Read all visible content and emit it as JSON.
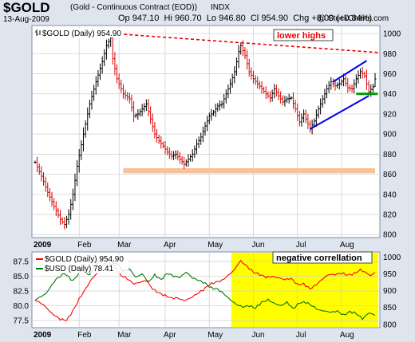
{
  "header": {
    "symbol": "$GOLD",
    "description": "(Gold - Continuous Contract (EOD))",
    "exchange": "INDX",
    "date": "13-Aug-2009",
    "open_label": "Op",
    "open": "947.10",
    "high_label": "Hi",
    "high": "960.70",
    "low_label": "Lo",
    "low": "946.80",
    "close_label": "Cl",
    "close": "954.90",
    "change_label": "Chg",
    "change": "+8.00 (+0.84%)",
    "credit": "@ StockCharts.com"
  },
  "colors": {
    "panel_bg": "#dfe5ee",
    "plot_bg": "#ffffff",
    "grid": "#cccccc",
    "up": "#000000",
    "down": "#dd0000",
    "resistance": "#ee0000",
    "support_zone": "#f7c19a",
    "channel": "#0000ee",
    "support_tick": "#009900",
    "highlight": "#ffff00",
    "gold_line": "#ff0000",
    "usd_line": "#007700"
  },
  "chart_data": [
    {
      "type": "ohlc",
      "title": "$GOLD (Daily) 954.90",
      "legend": "$GOLD (Daily) 954.90",
      "x_labels": [
        "2009",
        "Feb",
        "Mar",
        "Apr",
        "May",
        "Jun",
        "Jul",
        "Aug"
      ],
      "y_ticks": [
        800,
        820,
        840,
        860,
        880,
        900,
        920,
        940,
        960,
        980,
        1000
      ],
      "ylim": [
        797,
        1008
      ],
      "n_days": 163,
      "close_anchors": [
        [
          0,
          872
        ],
        [
          3,
          858
        ],
        [
          6,
          842
        ],
        [
          9,
          828
        ],
        [
          12,
          815
        ],
        [
          14,
          810
        ],
        [
          16,
          820
        ],
        [
          18,
          840
        ],
        [
          20,
          868
        ],
        [
          23,
          900
        ],
        [
          26,
          930
        ],
        [
          29,
          952
        ],
        [
          32,
          972
        ],
        [
          34,
          988
        ],
        [
          36,
          996
        ],
        [
          37,
          975
        ],
        [
          39,
          955
        ],
        [
          42,
          940
        ],
        [
          45,
          935
        ],
        [
          47,
          918
        ],
        [
          49,
          920
        ],
        [
          51,
          925
        ],
        [
          53,
          930
        ],
        [
          55,
          915
        ],
        [
          57,
          900
        ],
        [
          59,
          893
        ],
        [
          61,
          888
        ],
        [
          63,
          882
        ],
        [
          65,
          878
        ],
        [
          67,
          880
        ],
        [
          69,
          875
        ],
        [
          71,
          870
        ],
        [
          73,
          875
        ],
        [
          75,
          880
        ],
        [
          77,
          890
        ],
        [
          79,
          897
        ],
        [
          81,
          908
        ],
        [
          83,
          918
        ],
        [
          85,
          922
        ],
        [
          87,
          928
        ],
        [
          89,
          930
        ],
        [
          91,
          940
        ],
        [
          93,
          950
        ],
        [
          95,
          962
        ],
        [
          97,
          982
        ],
        [
          98,
          988
        ],
        [
          100,
          978
        ],
        [
          102,
          962
        ],
        [
          104,
          955
        ],
        [
          106,
          950
        ],
        [
          108,
          945
        ],
        [
          110,
          940
        ],
        [
          112,
          936
        ],
        [
          114,
          945
        ],
        [
          116,
          938
        ],
        [
          118,
          932
        ],
        [
          120,
          935
        ],
        [
          122,
          936
        ],
        [
          124,
          925
        ],
        [
          126,
          912
        ],
        [
          128,
          920
        ],
        [
          130,
          910
        ],
        [
          131,
          905
        ],
        [
          133,
          913
        ],
        [
          135,
          925
        ],
        [
          137,
          935
        ],
        [
          139,
          945
        ],
        [
          141,
          952
        ],
        [
          143,
          948
        ],
        [
          145,
          950
        ],
        [
          147,
          955
        ],
        [
          149,
          946
        ],
        [
          151,
          945
        ],
        [
          153,
          955
        ],
        [
          155,
          962
        ],
        [
          157,
          958
        ],
        [
          159,
          942
        ],
        [
          161,
          947
        ],
        [
          162,
          954.9
        ]
      ],
      "last_bar": {
        "open": 947.1,
        "high": 960.7,
        "low": 946.8,
        "close": 954.9
      },
      "annotations": {
        "resistance_line": {
          "label": "lower highs",
          "from": [
            37,
            1000
          ],
          "to": [
            162,
            981
          ]
        },
        "support_zone": {
          "from_day": 42,
          "to_day": 162,
          "y_low": 861,
          "y_high": 866
        },
        "channel_upper": {
          "from": [
            142,
            952
          ],
          "to": [
            158,
            973
          ]
        },
        "channel_lower": {
          "from": [
            131,
            905
          ],
          "to": [
            159,
            938
          ]
        },
        "support_tick": {
          "from_day": 153,
          "to_day": 161,
          "y": 940
        }
      }
    },
    {
      "type": "line",
      "label": "negative correllation",
      "x_labels": [
        "2009",
        "Feb",
        "Mar",
        "Apr",
        "May",
        "Jun",
        "Jul",
        "Aug"
      ],
      "highlight": {
        "from_day": 95,
        "to_day": 162
      },
      "series": [
        {
          "name": "$GOLD (Daily) 954.90",
          "axis": "right",
          "right_ticks": [
            800,
            850,
            900,
            950,
            1000
          ],
          "ylim": [
            790,
            1015
          ],
          "anchors": [
            [
              0,
              872
            ],
            [
              4,
              858
            ],
            [
              8,
              832
            ],
            [
              12,
              815
            ],
            [
              15,
              812
            ],
            [
              18,
              840
            ],
            [
              21,
              875
            ],
            [
              24,
              905
            ],
            [
              27,
              935
            ],
            [
              30,
              955
            ],
            [
              33,
              980
            ],
            [
              36,
              996
            ],
            [
              38,
              970
            ],
            [
              41,
              945
            ],
            [
              44,
              935
            ],
            [
              47,
              920
            ],
            [
              50,
              925
            ],
            [
              53,
              930
            ],
            [
              56,
              905
            ],
            [
              59,
              893
            ],
            [
              62,
              885
            ],
            [
              65,
              878
            ],
            [
              68,
              878
            ],
            [
              71,
              870
            ],
            [
              74,
              878
            ],
            [
              77,
              890
            ],
            [
              80,
              902
            ],
            [
              83,
              918
            ],
            [
              86,
              925
            ],
            [
              89,
              930
            ],
            [
              92,
              945
            ],
            [
              95,
              962
            ],
            [
              97,
              982
            ],
            [
              98,
              988
            ],
            [
              101,
              972
            ],
            [
              104,
              955
            ],
            [
              107,
              948
            ],
            [
              110,
              940
            ],
            [
              113,
              942
            ],
            [
              116,
              938
            ],
            [
              119,
              933
            ],
            [
              122,
              936
            ],
            [
              125,
              918
            ],
            [
              128,
              920
            ],
            [
              131,
              905
            ],
            [
              134,
              918
            ],
            [
              137,
              935
            ],
            [
              140,
              948
            ],
            [
              143,
              948
            ],
            [
              146,
              952
            ],
            [
              149,
              946
            ],
            [
              152,
              950
            ],
            [
              155,
              962
            ],
            [
              158,
              952
            ],
            [
              160,
              944
            ],
            [
              162,
              954.9
            ]
          ]
        },
        {
          "name": "$USD (Daily) 78.41",
          "axis": "left",
          "left_ticks": [
            77.5,
            80.0,
            82.5,
            85.0,
            87.5
          ],
          "ylim": [
            76.3,
            89.1
          ],
          "anchors": [
            [
              0,
              81.0
            ],
            [
              5,
              82.0
            ],
            [
              10,
              84.5
            ],
            [
              14,
              85.5
            ],
            [
              18,
              84.2
            ],
            [
              22,
              86.0
            ],
            [
              26,
              85.2
            ],
            [
              30,
              87.5
            ],
            [
              33,
              88.3
            ],
            [
              36,
              87.0
            ],
            [
              39,
              87.2
            ],
            [
              42,
              85.8
            ],
            [
              45,
              86.2
            ],
            [
              48,
              84.8
            ],
            [
              51,
              85.4
            ],
            [
              54,
              84.0
            ],
            [
              57,
              85.2
            ],
            [
              60,
              84.4
            ],
            [
              63,
              85.5
            ],
            [
              66,
              85.0
            ],
            [
              69,
              84.8
            ],
            [
              72,
              85.7
            ],
            [
              75,
              84.7
            ],
            [
              78,
              84.3
            ],
            [
              81,
              83.8
            ],
            [
              84,
              83.0
            ],
            [
              87,
              82.8
            ],
            [
              90,
              82.0
            ],
            [
              93,
              81.0
            ],
            [
              96,
              80.2
            ],
            [
              99,
              79.8
            ],
            [
              102,
              80.0
            ],
            [
              105,
              79.6
            ],
            [
              108,
              80.6
            ],
            [
              111,
              81.0
            ],
            [
              114,
              80.4
            ],
            [
              117,
              80.0
            ],
            [
              120,
              80.6
            ],
            [
              123,
              79.5
            ],
            [
              126,
              80.5
            ],
            [
              129,
              80.6
            ],
            [
              132,
              80.0
            ],
            [
              135,
              79.3
            ],
            [
              138,
              79.1
            ],
            [
              141,
              78.9
            ],
            [
              144,
              79.1
            ],
            [
              147,
              78.4
            ],
            [
              150,
              79.0
            ],
            [
              153,
              78.7
            ],
            [
              156,
              77.8
            ],
            [
              159,
              78.8
            ],
            [
              162,
              78.41
            ]
          ]
        }
      ]
    }
  ]
}
